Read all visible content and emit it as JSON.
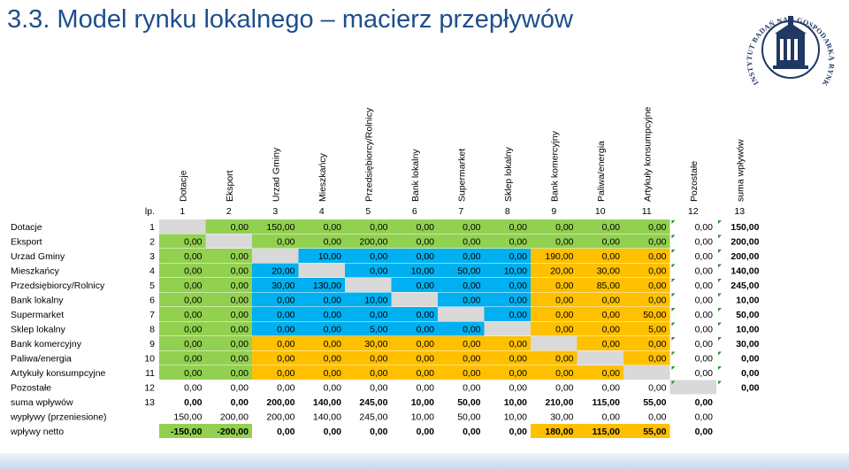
{
  "slide": {
    "title": "3.3. Model rynku lokalnego – macierz przepływów",
    "logo_text": "INSTYTUT BADAŃ NAD GOSPODARKĄ RYNKOWĄ"
  },
  "colors": {
    "green": "#92d050",
    "blue": "#00b0f0",
    "orange": "#ffc000",
    "diag": "#d9d9d9",
    "title": "#1f4e8c",
    "logo": "#1f3864"
  },
  "matrix": {
    "lp_label": "lp.",
    "columns": [
      {
        "name": "Dotacje",
        "num": "1"
      },
      {
        "name": "Eksport",
        "num": "2"
      },
      {
        "name": "Urzad Gminy",
        "num": "3"
      },
      {
        "name": "Mieszkańcy",
        "num": "4"
      },
      {
        "name": "Przedsiębiorcy/Rolnicy",
        "num": "5"
      },
      {
        "name": "Bank lokalny",
        "num": "6"
      },
      {
        "name": "Supermarket",
        "num": "7"
      },
      {
        "name": "Sklep lokalny",
        "num": "8"
      },
      {
        "name": "Bank komercyjny",
        "num": "9"
      },
      {
        "name": "Paliwa/energia",
        "num": "10"
      },
      {
        "name": "Artykuły konsumpcyjne",
        "num": "11"
      },
      {
        "name": "Pozostałe",
        "num": "12"
      },
      {
        "name": "suma wpływów",
        "num": "13"
      }
    ],
    "rows": [
      {
        "label": "Dotacje",
        "num": "1",
        "cells": [
          "",
          "0,00",
          "150,00",
          "0,00",
          "0,00",
          "0,00",
          "0,00",
          "0,00",
          "0,00",
          "0,00",
          "0,00",
          "0,00",
          "150,00"
        ]
      },
      {
        "label": "Eksport",
        "num": "2",
        "cells": [
          "0,00",
          "",
          "0,00",
          "0,00",
          "200,00",
          "0,00",
          "0,00",
          "0,00",
          "0,00",
          "0,00",
          "0,00",
          "0,00",
          "200,00"
        ]
      },
      {
        "label": "Urzad Gminy",
        "num": "3",
        "cells": [
          "0,00",
          "0,00",
          "",
          "10,00",
          "0,00",
          "0,00",
          "0,00",
          "0,00",
          "190,00",
          "0,00",
          "0,00",
          "0,00",
          "200,00"
        ]
      },
      {
        "label": "Mieszkańcy",
        "num": "4",
        "cells": [
          "0,00",
          "0,00",
          "20,00",
          "",
          "0,00",
          "10,00",
          "50,00",
          "10,00",
          "20,00",
          "30,00",
          "0,00",
          "0,00",
          "140,00"
        ]
      },
      {
        "label": "Przedsiębiorcy/Rolnicy",
        "num": "5",
        "cells": [
          "0,00",
          "0,00",
          "30,00",
          "130,00",
          "",
          "0,00",
          "0,00",
          "0,00",
          "0,00",
          "85,00",
          "0,00",
          "0,00",
          "245,00"
        ]
      },
      {
        "label": "Bank lokalny",
        "num": "6",
        "cells": [
          "0,00",
          "0,00",
          "0,00",
          "0,00",
          "10,00",
          "",
          "0,00",
          "0,00",
          "0,00",
          "0,00",
          "0,00",
          "0,00",
          "10,00"
        ]
      },
      {
        "label": "Supermarket",
        "num": "7",
        "cells": [
          "0,00",
          "0,00",
          "0,00",
          "0,00",
          "0,00",
          "0,00",
          "",
          "0,00",
          "0,00",
          "0,00",
          "50,00",
          "0,00",
          "50,00"
        ]
      },
      {
        "label": "Sklep lokalny",
        "num": "8",
        "cells": [
          "0,00",
          "0,00",
          "0,00",
          "0,00",
          "5,00",
          "0,00",
          "0,00",
          "",
          "0,00",
          "0,00",
          "5,00",
          "0,00",
          "10,00"
        ]
      },
      {
        "label": "Bank komercyjny",
        "num": "9",
        "cells": [
          "0,00",
          "0,00",
          "0,00",
          "0,00",
          "30,00",
          "0,00",
          "0,00",
          "0,00",
          "",
          "0,00",
          "0,00",
          "0,00",
          "30,00"
        ]
      },
      {
        "label": "Paliwa/energia",
        "num": "10",
        "cells": [
          "0,00",
          "0,00",
          "0,00",
          "0,00",
          "0,00",
          "0,00",
          "0,00",
          "0,00",
          "0,00",
          "",
          "0,00",
          "0,00",
          "0,00"
        ]
      },
      {
        "label": "Artykuły konsumpcyjne",
        "num": "11",
        "cells": [
          "0,00",
          "0,00",
          "0,00",
          "0,00",
          "0,00",
          "0,00",
          "0,00",
          "0,00",
          "0,00",
          "0,00",
          "",
          "0,00",
          "0,00"
        ]
      },
      {
        "label": "Pozostałe",
        "num": "12",
        "cells": [
          "0,00",
          "0,00",
          "0,00",
          "0,00",
          "0,00",
          "0,00",
          "0,00",
          "0,00",
          "0,00",
          "0,00",
          "0,00",
          "",
          "0,00"
        ]
      }
    ],
    "summary_rows": [
      {
        "label": "suma wpływów",
        "num": "13",
        "cells": [
          "0,00",
          "0,00",
          "200,00",
          "140,00",
          "245,00",
          "10,00",
          "50,00",
          "10,00",
          "210,00",
          "115,00",
          "55,00",
          "0,00"
        ]
      },
      {
        "label": "wypływy (przeniesione)",
        "num": "",
        "cells": [
          "150,00",
          "200,00",
          "200,00",
          "140,00",
          "245,00",
          "10,00",
          "50,00",
          "10,00",
          "30,00",
          "0,00",
          "0,00",
          "0,00"
        ]
      },
      {
        "label": "wpływy netto",
        "num": "",
        "cells": [
          "-150,00",
          "-200,00",
          "0,00",
          "0,00",
          "0,00",
          "0,00",
          "0,00",
          "0,00",
          "180,00",
          "115,00",
          "55,00",
          "0,00"
        ]
      }
    ]
  }
}
